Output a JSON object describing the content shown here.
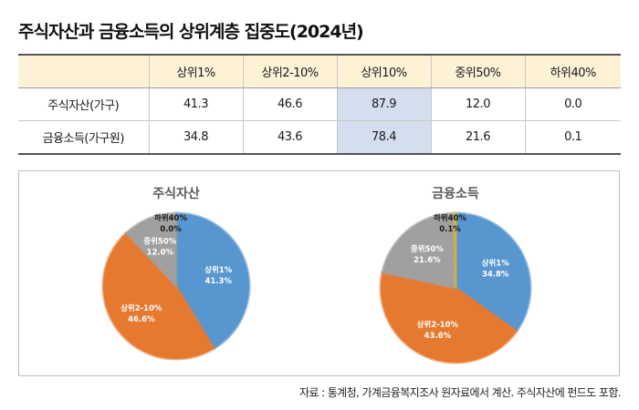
{
  "title": "주식자산과 금융소득의 상위계층 집중도(2024년)",
  "table": {
    "headers": [
      "",
      "상위1%",
      "상위2-10%",
      "상위10%",
      "중위50%",
      "하위40%"
    ],
    "rows": [
      {
        "label": "주식자산(가구)",
        "values": [
          "41.3",
          "46.6",
          "87.9",
          "12.0",
          "0.0"
        ]
      },
      {
        "label": "금융소득(가구원)",
        "values": [
          "34.8",
          "43.6",
          "78.4",
          "21.6",
          "0.1"
        ]
      }
    ]
  },
  "chart_data": [
    {
      "type": "pie",
      "title": "주식자산",
      "slices": [
        {
          "name": "상위1%",
          "value": 41.3,
          "label": "41.3%",
          "color": "#5b9bd5"
        },
        {
          "name": "상위2-10%",
          "value": 46.6,
          "label": "46.6%",
          "color": "#ed7d31"
        },
        {
          "name": "중위50%",
          "value": 12.0,
          "label": "12.0%",
          "color": "#a5a5a5"
        },
        {
          "name": "하위40%",
          "value": 0.0,
          "label": "0.0%",
          "color": "#ffc000"
        }
      ]
    },
    {
      "type": "pie",
      "title": "금융소득",
      "slices": [
        {
          "name": "상위1%",
          "value": 34.8,
          "label": "34.8%",
          "color": "#5b9bd5"
        },
        {
          "name": "상위2-10%",
          "value": 43.6,
          "label": "43.6%",
          "color": "#ed7d31"
        },
        {
          "name": "중위50%",
          "value": 21.6,
          "label": "21.6%",
          "color": "#a5a5a5"
        },
        {
          "name": "하위40%",
          "value": 0.1,
          "label": "0.1%",
          "color": "#ffc000"
        }
      ]
    }
  ],
  "source": "자료 : 통계청, 가계금융복지조사 원자료에서 계산. 주식자산에 펀드도 포함."
}
